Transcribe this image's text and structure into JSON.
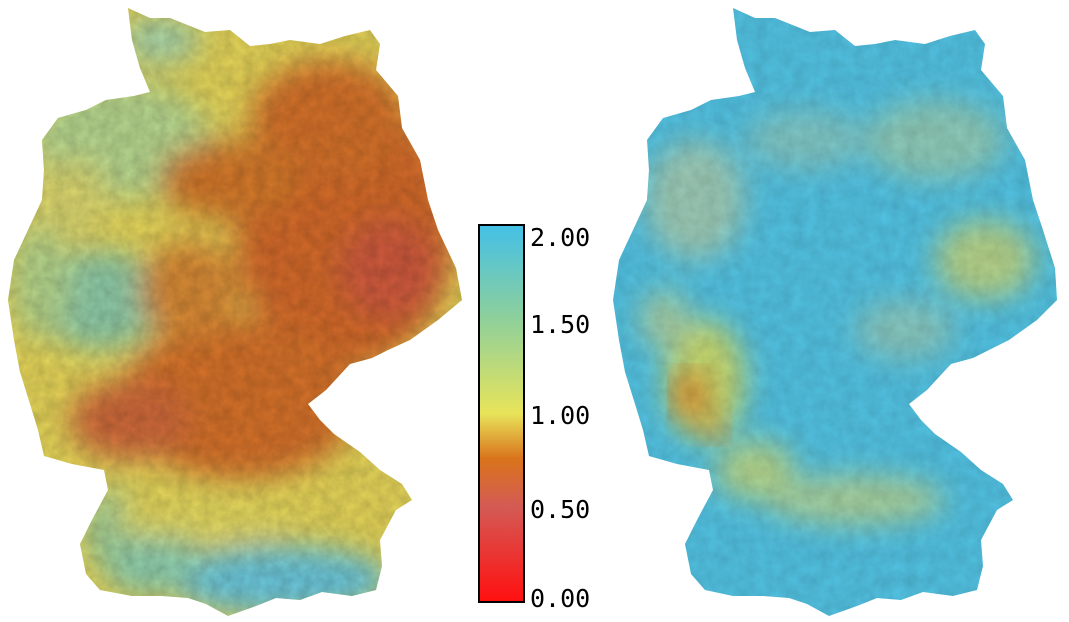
{
  "legend": {
    "ticks": [
      "2.00",
      "1.50",
      "1.00",
      "0.50",
      "0.00"
    ],
    "range": [
      0.0,
      2.0
    ],
    "colors": {
      "0.00": "#ff1010",
      "0.50": "#d45a55",
      "0.75": "#d9741c",
      "1.00": "#e8e45a",
      "1.50": "#8fd09a",
      "2.00": "#44c0e6"
    }
  },
  "maps": [
    {
      "region": "Germany",
      "dominant_colors": [
        "#d9741c",
        "#e8c94a",
        "#b9d98a",
        "#62c6d8"
      ],
      "note_colors": {
        "east": "#d46a2c",
        "south": "#6cc8dc",
        "northwest": "#b8d890"
      }
    },
    {
      "region": "Germany",
      "dominant_colors": [
        "#4cc0e0",
        "#7cc8c8",
        "#c6d870",
        "#d97b2a"
      ],
      "note_colors": {
        "west": "#d9862a",
        "overall": "#52c2e2"
      }
    }
  ]
}
